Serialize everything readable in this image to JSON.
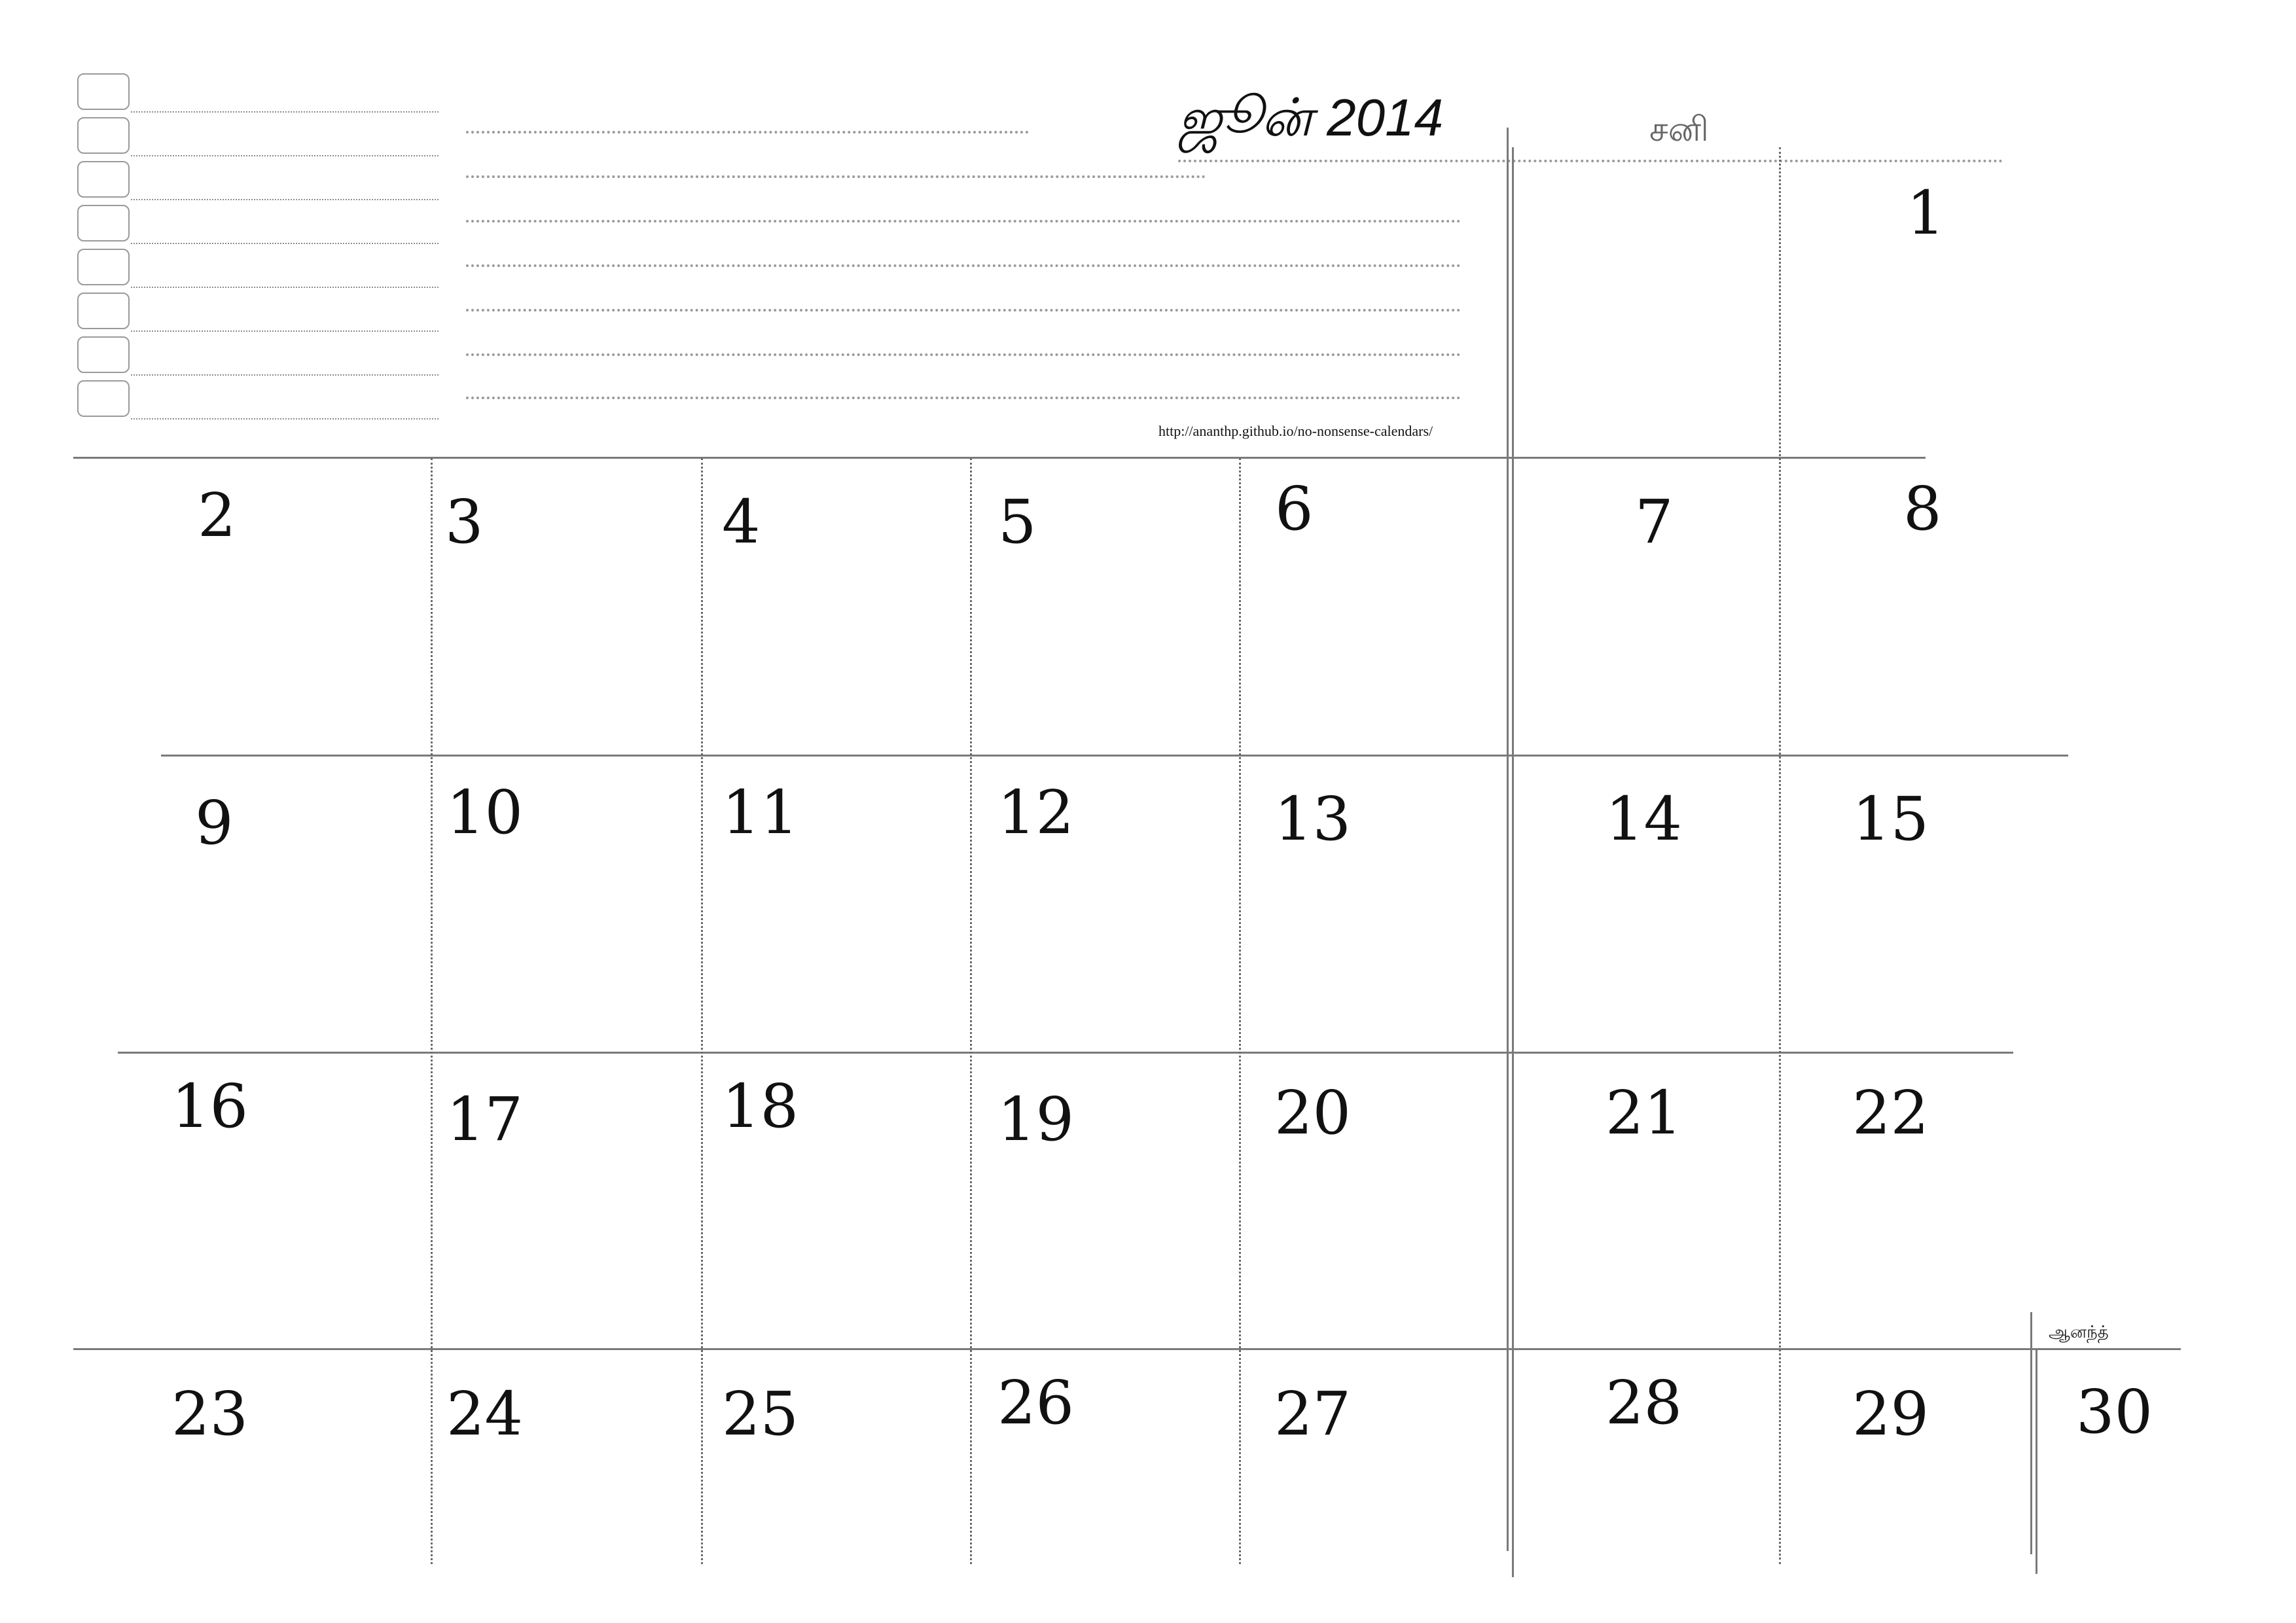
{
  "header": {
    "title": "ஜூன் 2014",
    "weekday_label": "சனி",
    "url": "http://ananthp.github.io/no-nonsense-calendars/",
    "author": "ஆனந்த்"
  },
  "notes": {
    "checkbox_count": 8
  },
  "calendar": {
    "month": "June",
    "year": 2014,
    "days": [
      "1",
      "2",
      "3",
      "4",
      "5",
      "6",
      "7",
      "8",
      "9",
      "10",
      "11",
      "12",
      "13",
      "14",
      "15",
      "16",
      "17",
      "18",
      "19",
      "20",
      "21",
      "22",
      "23",
      "24",
      "25",
      "26",
      "27",
      "28",
      "29",
      "30"
    ]
  }
}
